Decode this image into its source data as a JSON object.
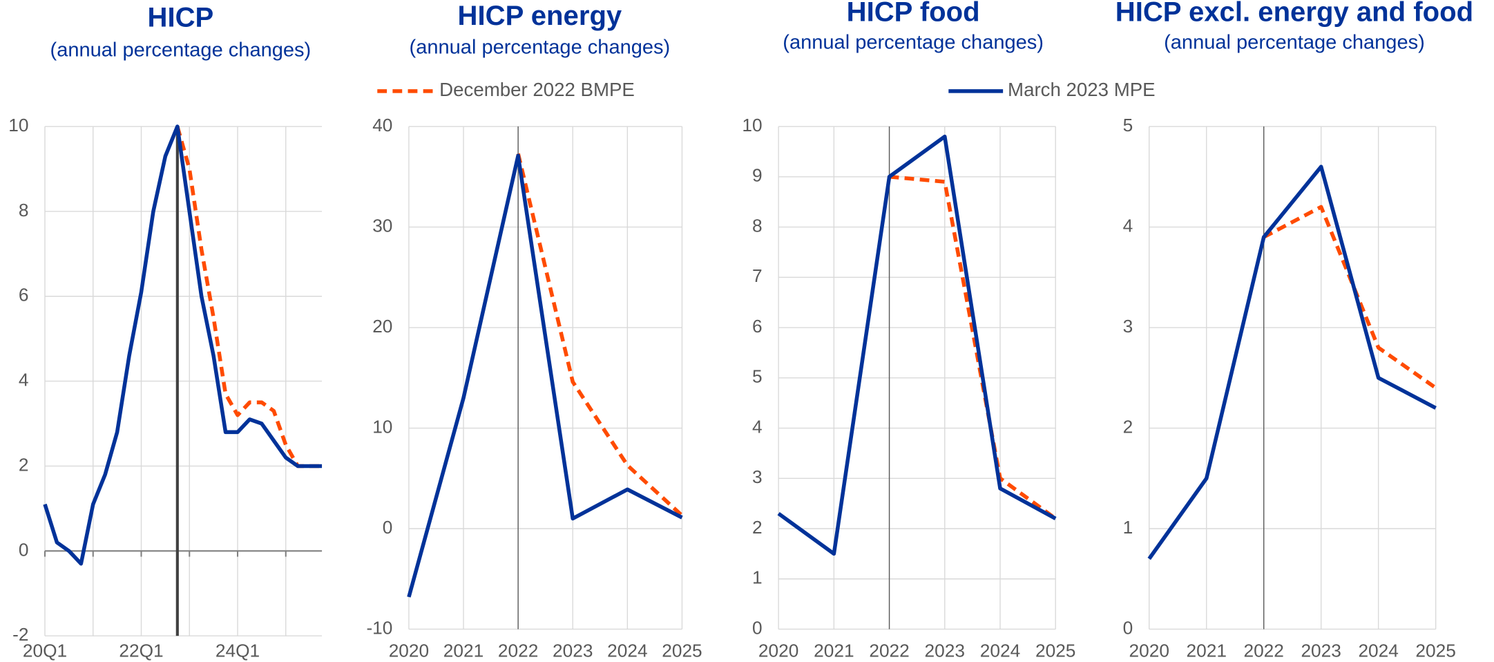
{
  "chart_data": [
    {
      "type": "line",
      "title": "HICP",
      "subtitle": "(annual percentage changes)",
      "categories": [
        "20Q1",
        null,
        null,
        null,
        null,
        null,
        null,
        null,
        "22Q1",
        null,
        null,
        null,
        null,
        null,
        null,
        null,
        "24Q1",
        null,
        null,
        null,
        null,
        null,
        null,
        null
      ],
      "series": [
        {
          "name": "December 2022 BMPE",
          "color": "#ff4b00",
          "dashed": true,
          "values": [
            null,
            null,
            null,
            null,
            null,
            null,
            null,
            null,
            null,
            null,
            null,
            10.0,
            9.0,
            7.1,
            5.5,
            3.7,
            3.2,
            3.5,
            3.5,
            3.3,
            2.5,
            2.0,
            2.0,
            2.0
          ]
        },
        {
          "name": "March 2023 MPE",
          "color": "#003299",
          "dashed": false,
          "values": [
            1.1,
            0.2,
            0.0,
            -0.3,
            1.1,
            1.8,
            2.8,
            4.6,
            6.1,
            8.0,
            9.3,
            10.0,
            8.0,
            6.0,
            4.6,
            2.8,
            2.8,
            3.1,
            3.0,
            2.6,
            2.2,
            2.0,
            2.0,
            2.0
          ]
        }
      ],
      "ylim": [
        -2,
        10
      ],
      "yticks": [
        -2,
        0,
        2,
        4,
        6,
        8,
        10
      ],
      "grid": true
    },
    {
      "type": "line",
      "title": "HICP energy",
      "subtitle": "(annual percentage changes)",
      "x": [
        2020,
        2021,
        2022,
        2023,
        2024,
        2025
      ],
      "series": [
        {
          "name": "December 2022 BMPE",
          "color": "#ff4b00",
          "dashed": true,
          "values": [
            null,
            null,
            37.3,
            14.6,
            6.3,
            1.3
          ]
        },
        {
          "name": "March 2023 MPE",
          "color": "#003299",
          "dashed": false,
          "values": [
            -6.8,
            13.0,
            37.1,
            1.0,
            3.9,
            1.1
          ]
        }
      ],
      "xlim": [
        2020,
        2025
      ],
      "xticks": [
        2020,
        2021,
        2022,
        2023,
        2024,
        2025
      ],
      "ylim": [
        -10,
        40
      ],
      "yticks": [
        -10,
        0,
        10,
        20,
        30,
        40
      ],
      "grid": true
    },
    {
      "type": "line",
      "title": "HICP food",
      "subtitle": "(annual percentage changes)",
      "x": [
        2020,
        2021,
        2022,
        2023,
        2024,
        2025
      ],
      "series": [
        {
          "name": "December 2022 BMPE",
          "color": "#ff4b00",
          "dashed": true,
          "values": [
            null,
            null,
            9.0,
            8.9,
            3.0,
            2.2
          ]
        },
        {
          "name": "March 2023 MPE",
          "color": "#003299",
          "dashed": false,
          "values": [
            2.3,
            1.5,
            9.0,
            9.8,
            2.8,
            2.2
          ]
        }
      ],
      "xlim": [
        2020,
        2025
      ],
      "xticks": [
        2020,
        2021,
        2022,
        2023,
        2024,
        2025
      ],
      "ylim": [
        0,
        10
      ],
      "yticks": [
        0,
        1,
        2,
        3,
        4,
        5,
        6,
        7,
        8,
        9,
        10
      ],
      "grid": true
    },
    {
      "type": "line",
      "title": "HICP excl. energy and food",
      "subtitle": "(annual percentage changes)",
      "x": [
        2020,
        2021,
        2022,
        2023,
        2024,
        2025
      ],
      "series": [
        {
          "name": "December 2022 BMPE",
          "color": "#ff4b00",
          "dashed": true,
          "values": [
            null,
            null,
            3.9,
            4.2,
            2.8,
            2.4
          ]
        },
        {
          "name": "March 2023 MPE",
          "color": "#003299",
          "dashed": false,
          "values": [
            0.7,
            1.5,
            3.9,
            4.6,
            2.5,
            2.2
          ]
        }
      ],
      "xlim": [
        2020,
        2025
      ],
      "xticks": [
        2020,
        2021,
        2022,
        2023,
        2024,
        2025
      ],
      "ylim": [
        0,
        5
      ],
      "yticks": [
        0,
        1,
        2,
        3,
        4,
        5
      ],
      "grid": true
    }
  ]
}
